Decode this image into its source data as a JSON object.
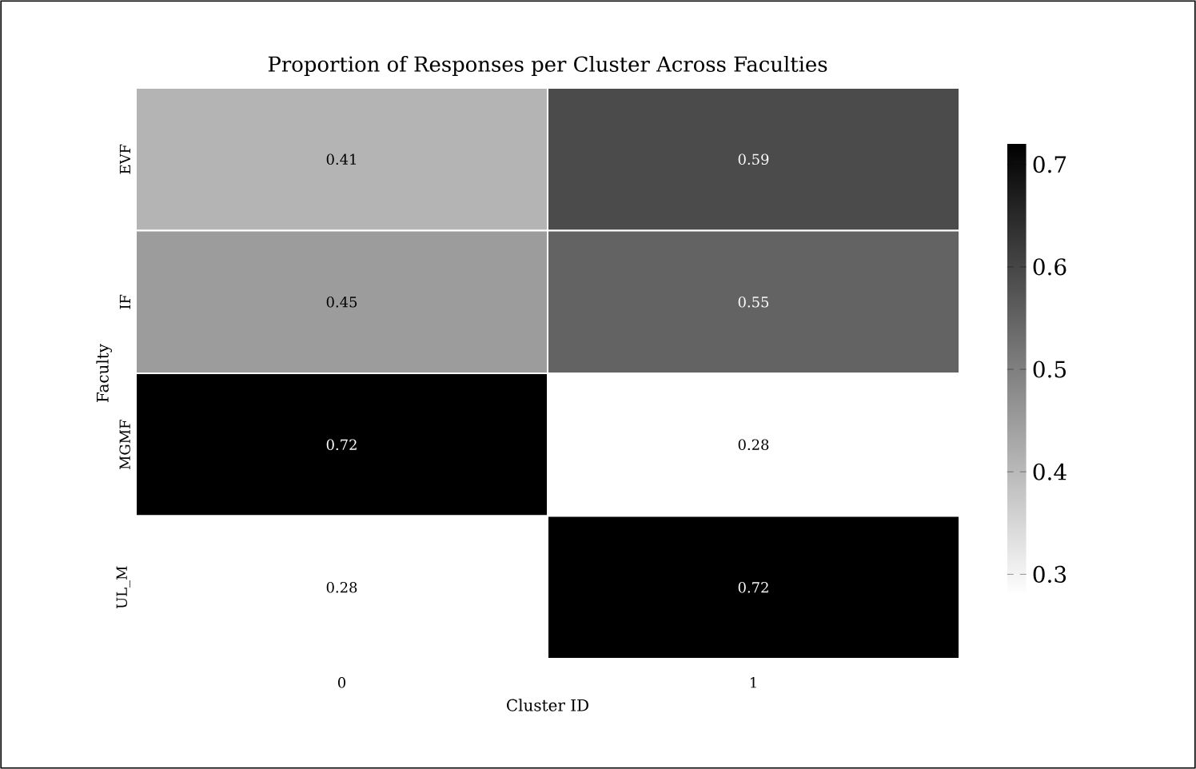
{
  "chart_data": {
    "type": "heatmap",
    "title": "Proportion of Responses per Cluster Across Faculties",
    "xlabel": "Cluster ID",
    "ylabel": "Faculty",
    "categories": [
      "0",
      "1"
    ],
    "y_categories": [
      "EVF",
      "IF",
      "MGMF",
      "UL_M"
    ],
    "cells": [
      [
        0.41,
        0.59
      ],
      [
        0.45,
        0.55
      ],
      [
        0.72,
        0.28
      ],
      [
        0.28,
        0.72
      ]
    ],
    "clim": [
      0.28,
      0.72
    ],
    "cticks": [
      0.3,
      0.4,
      0.5,
      0.6,
      0.7
    ],
    "data_labels": true
  }
}
